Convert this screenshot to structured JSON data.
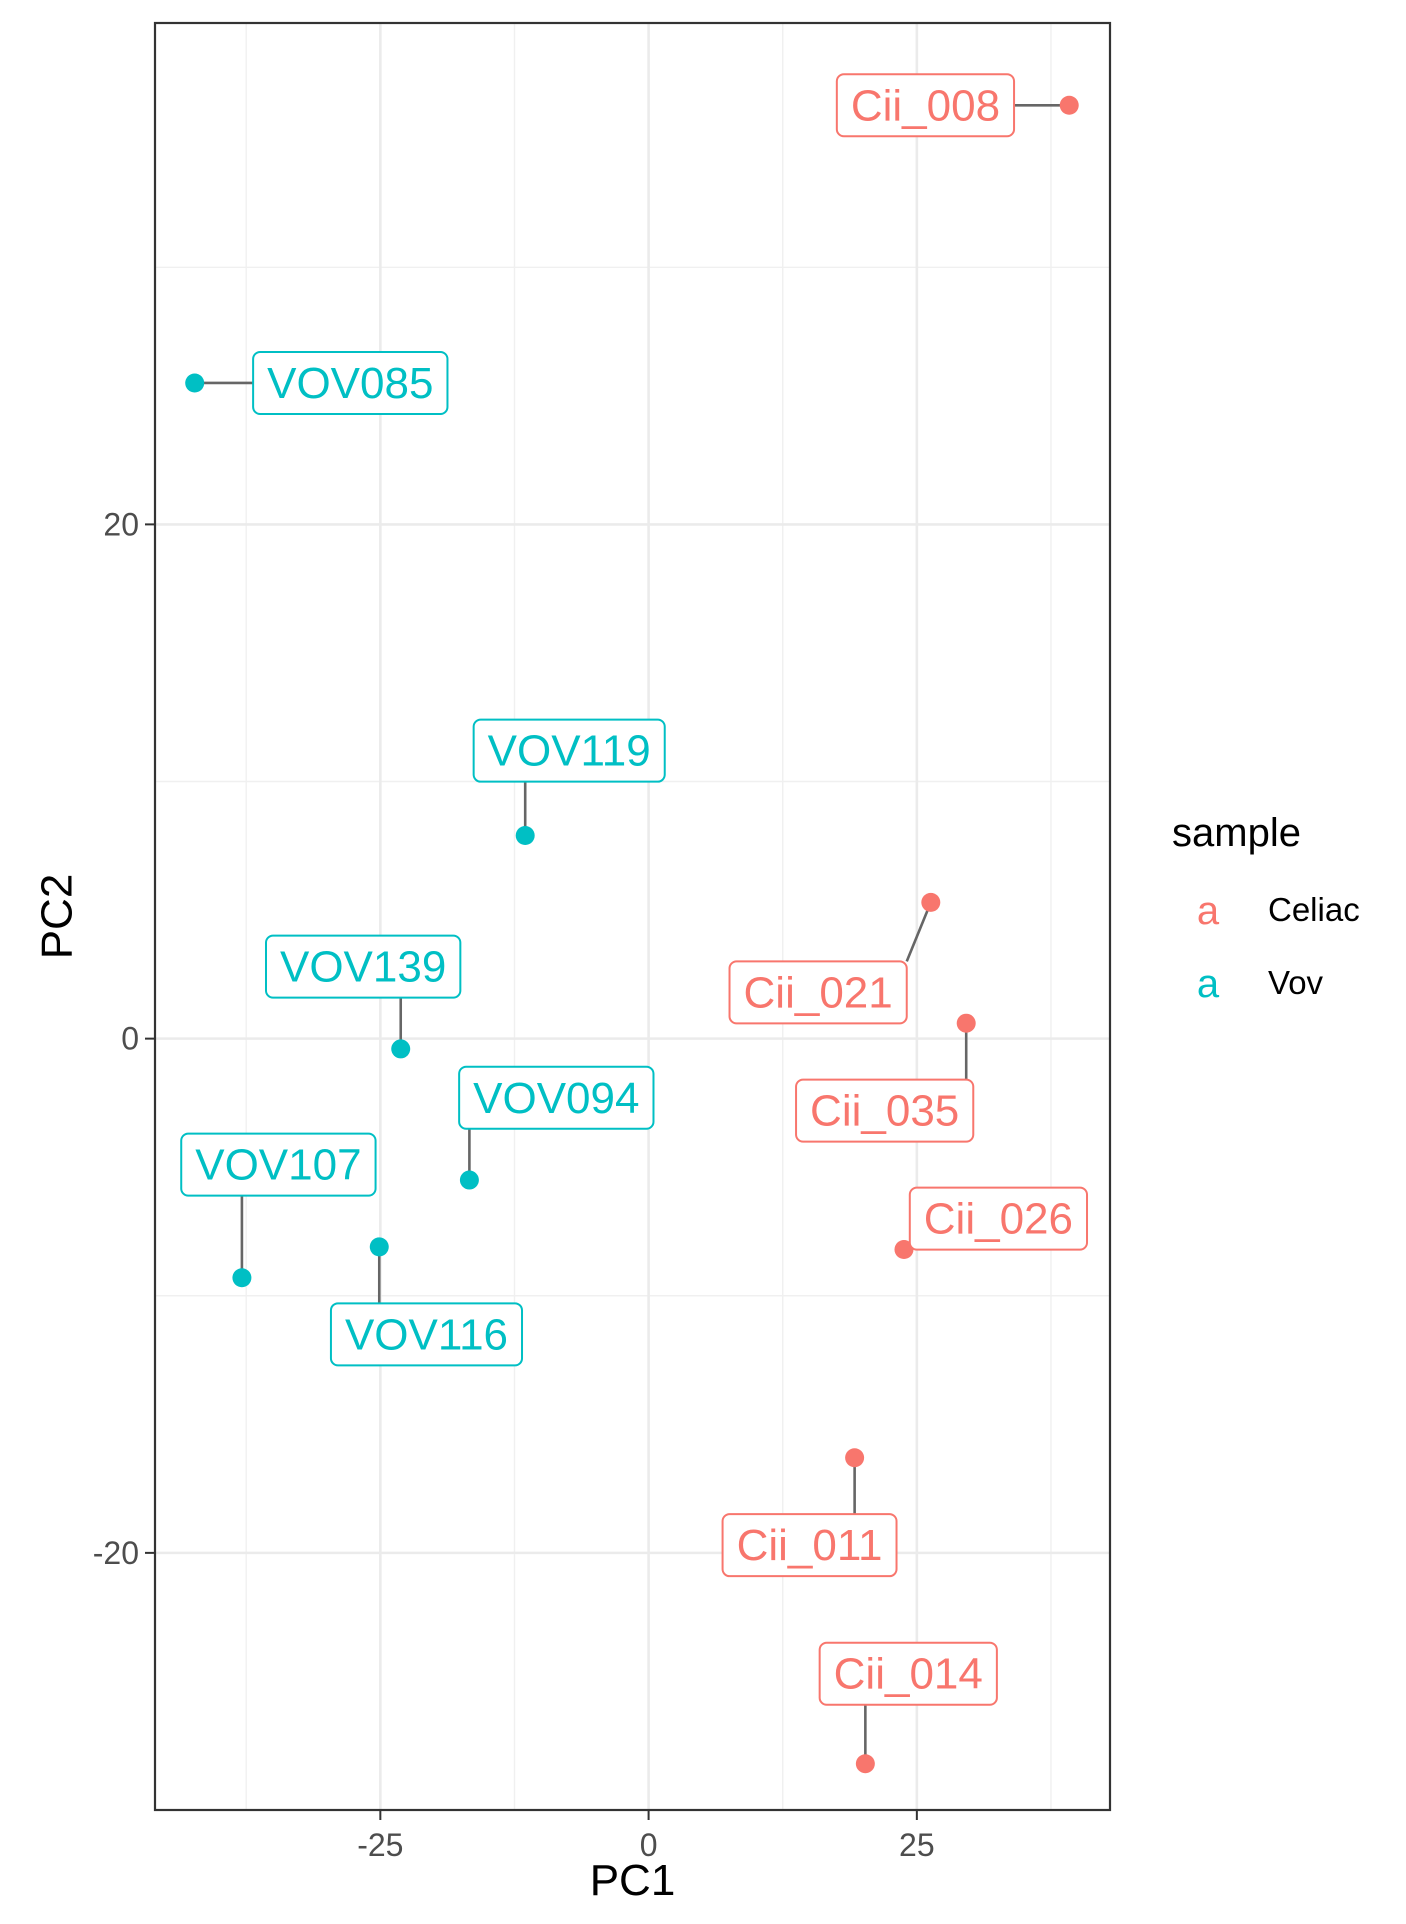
{
  "chart_data": {
    "type": "scatter",
    "xlabel": "PC1",
    "ylabel": "PC2",
    "xlim": [
      -46,
      43
    ],
    "ylim": [
      -30,
      39.5
    ],
    "x_ticks": [
      -25,
      0,
      25
    ],
    "x_tick_labels": [
      "-25",
      "0",
      "25"
    ],
    "y_ticks": [
      -20,
      0,
      20
    ],
    "y_tick_labels": [
      "-20",
      "0",
      "20"
    ],
    "x_minor_ticks": [
      -37.5,
      -12.5,
      12.5,
      37.5
    ],
    "y_minor_ticks": [
      -30,
      -10,
      10,
      30
    ],
    "grid": true,
    "legend": {
      "title": "sample",
      "placement": "right",
      "key_glyph": "a",
      "entries": [
        {
          "label": "Celiac",
          "color": "#F8766D"
        },
        {
          "label": "Vov",
          "color": "#00BFC4"
        }
      ]
    },
    "series": [
      {
        "name": "Celiac",
        "color": "#F8766D",
        "points": [
          {
            "label": "Cii_008",
            "x": 39.2,
            "y": 36.3,
            "label_x": 25.8,
            "label_y": 36.3
          },
          {
            "label": "Cii_021",
            "x": 26.3,
            "y": 5.3,
            "label_x": 15.8,
            "label_y": 1.8
          },
          {
            "label": "Cii_035",
            "x": 29.6,
            "y": 0.6,
            "label_x": 22.0,
            "label_y": -2.8
          },
          {
            "label": "Cii_026",
            "x": 23.8,
            "y": -8.2,
            "label_x": 32.6,
            "label_y": -7.0
          },
          {
            "label": "Cii_011",
            "x": 19.2,
            "y": -16.3,
            "label_x": 15.0,
            "label_y": -19.7
          },
          {
            "label": "Cii_014",
            "x": 20.2,
            "y": -28.2,
            "label_x": 24.2,
            "label_y": -24.7
          }
        ]
      },
      {
        "name": "Vov",
        "color": "#00BFC4",
        "points": [
          {
            "label": "VOV085",
            "x": -42.3,
            "y": 25.5,
            "label_x": -27.8,
            "label_y": 25.5
          },
          {
            "label": "VOV119",
            "x": -11.5,
            "y": 7.9,
            "label_x": -7.4,
            "label_y": 11.2
          },
          {
            "label": "VOV139",
            "x": -23.1,
            "y": -0.4,
            "label_x": -26.6,
            "label_y": 2.8
          },
          {
            "label": "VOV094",
            "x": -16.7,
            "y": -5.5,
            "label_x": -8.6,
            "label_y": -2.3
          },
          {
            "label": "VOV107",
            "x": -37.9,
            "y": -9.3,
            "label_x": -34.5,
            "label_y": -4.9
          },
          {
            "label": "VOV116",
            "x": -25.1,
            "y": -8.1,
            "label_x": -20.7,
            "label_y": -11.5
          }
        ]
      }
    ]
  }
}
